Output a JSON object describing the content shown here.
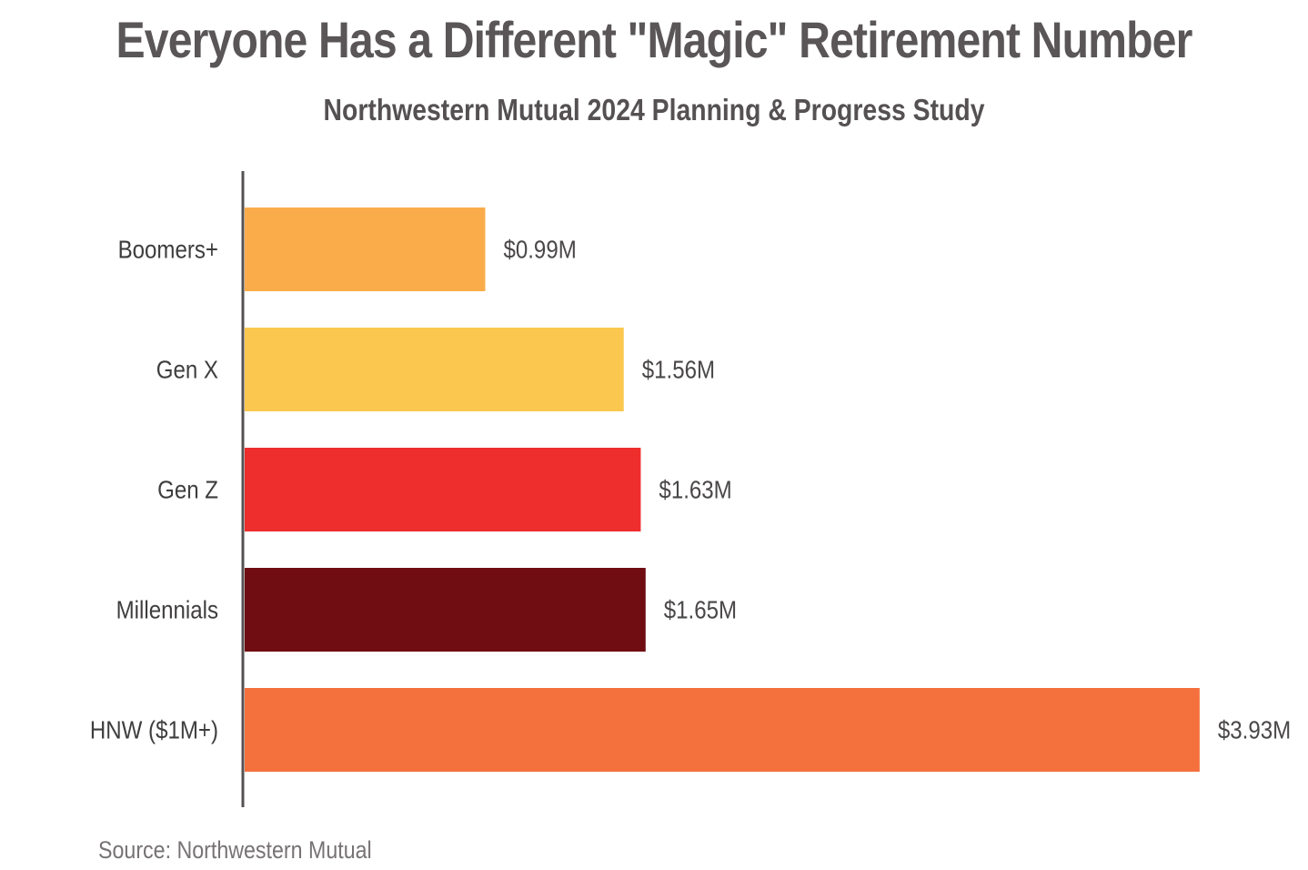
{
  "chart_data": {
    "type": "bar",
    "orientation": "horizontal",
    "title": "Everyone Has a Different \"Magic\" Retirement Number",
    "subtitle": "Northwestern Mutual 2024 Planning & Progress Study",
    "categories": [
      "Boomers+",
      "Gen X",
      "Gen Z",
      "Millennials",
      "HNW ($1M+)"
    ],
    "values": [
      0.99,
      1.56,
      1.63,
      1.65,
      3.93
    ],
    "value_labels": [
      "$0.99M",
      "$1.56M",
      "$1.63M",
      "$1.65M",
      "$3.93M"
    ],
    "bar_colors": [
      "#fbac4a",
      "#fbc74f",
      "#ee2d2d",
      "#700d12",
      "#f4703d"
    ],
    "xlim": [
      0,
      4.2
    ],
    "grid": false,
    "source": "Source: Northwestern Mutual"
  },
  "colors": {
    "title": "#5a5657",
    "subtitle": "#555152",
    "axis": "#555152",
    "source": "#777374"
  }
}
